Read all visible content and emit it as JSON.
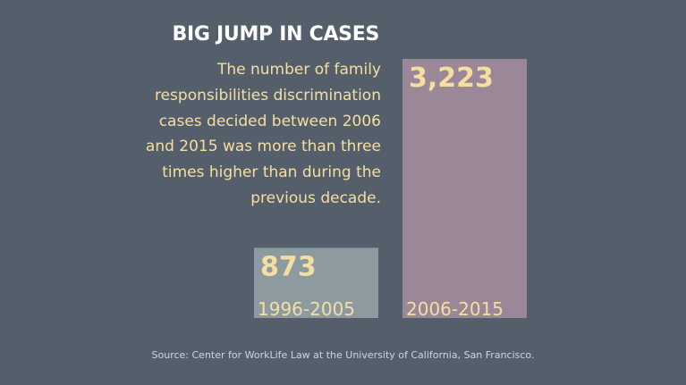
{
  "title": "BIG JUMP IN CASES",
  "description": "The number of family responsibilities discrimination cases decided between 2006 and 2015 was more than three times higher than during the previous decade.",
  "source": "Source: Center for WorkLife Law at the University of California, San Francisco.",
  "chart_data": {
    "type": "bar",
    "title": "BIG JUMP IN CASES",
    "categories": [
      "1996-2005",
      "2006-2015"
    ],
    "values": [
      873,
      3223
    ],
    "value_labels": [
      "873",
      "3,223"
    ],
    "colors": [
      "#8d9ba0",
      "#9a8798"
    ],
    "label_color": "#f5dfa0",
    "axes_visible": false,
    "grid": false,
    "legend": "none"
  }
}
